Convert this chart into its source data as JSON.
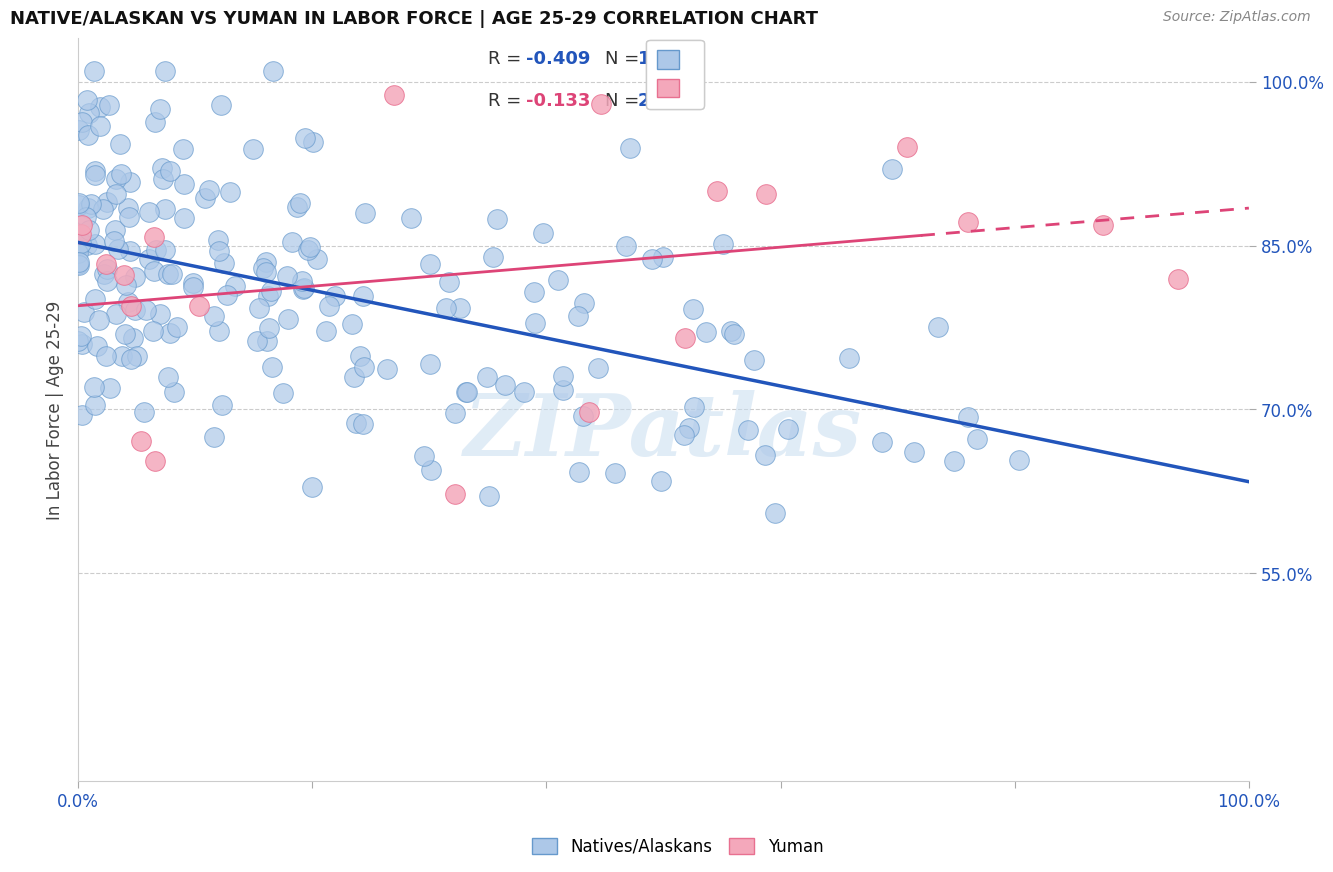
{
  "title": "NATIVE/ALASKAN VS YUMAN IN LABOR FORCE | AGE 25-29 CORRELATION CHART",
  "source_text": "Source: ZipAtlas.com",
  "ylabel": "In Labor Force | Age 25-29",
  "xlim": [
    0.0,
    1.0
  ],
  "ylim": [
    0.36,
    1.04
  ],
  "blue_R": -0.409,
  "blue_N": 199,
  "pink_R": -0.133,
  "pink_N": 20,
  "blue_color": "#adc8e8",
  "pink_color": "#f4a8bb",
  "blue_edge_color": "#6699cc",
  "pink_edge_color": "#e87090",
  "blue_line_color": "#2255bb",
  "pink_line_color": "#dd4477",
  "background_color": "#ffffff",
  "grid_color": "#cccccc",
  "watermark": "ZIPatlas",
  "legend_label_blue": "Natives/Alaskans",
  "legend_label_pink": "Yuman",
  "ytick_positions": [
    0.55,
    0.7,
    0.85,
    1.0
  ],
  "ytick_labels": [
    "55.0%",
    "70.0%",
    "85.0%",
    "100.0%"
  ]
}
